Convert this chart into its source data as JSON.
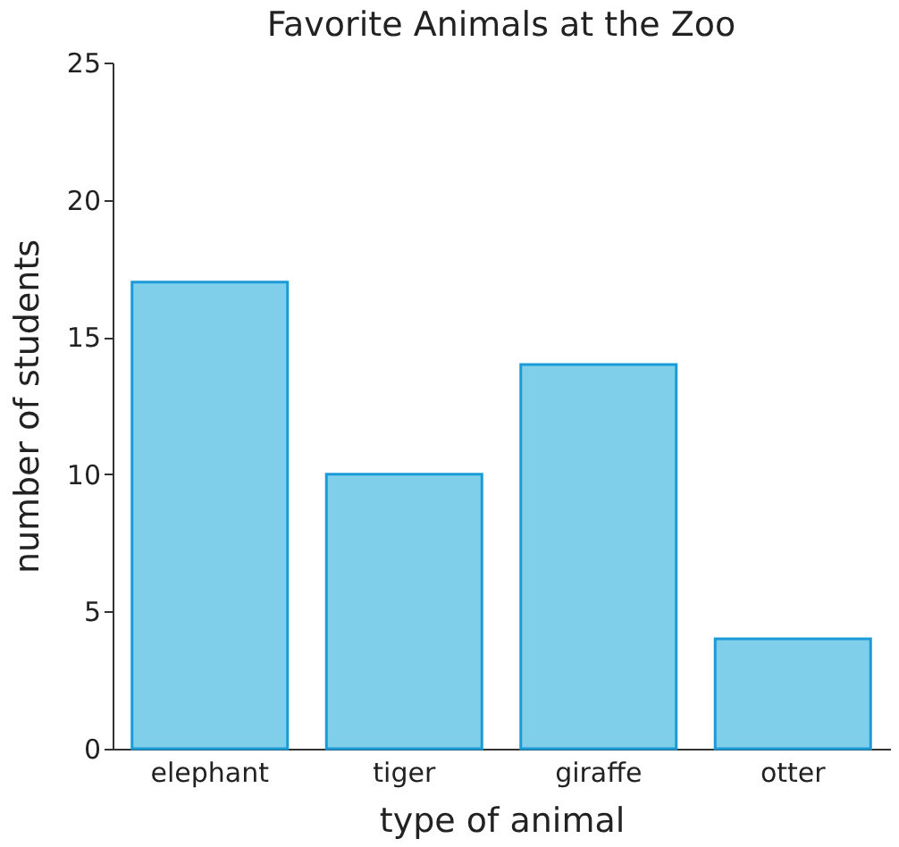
{
  "chart_data": {
    "type": "bar",
    "title": "Favorite Animals at the Zoo",
    "xlabel": "type of animal",
    "ylabel": "number of students",
    "categories": [
      "elephant",
      "tiger",
      "giraffe",
      "otter"
    ],
    "values": [
      17,
      10,
      14,
      4
    ],
    "color": "#7fcfeb",
    "ylim": [
      0,
      25
    ],
    "yticks": [
      0,
      5,
      10,
      15,
      20,
      25
    ],
    "grid": false
  }
}
